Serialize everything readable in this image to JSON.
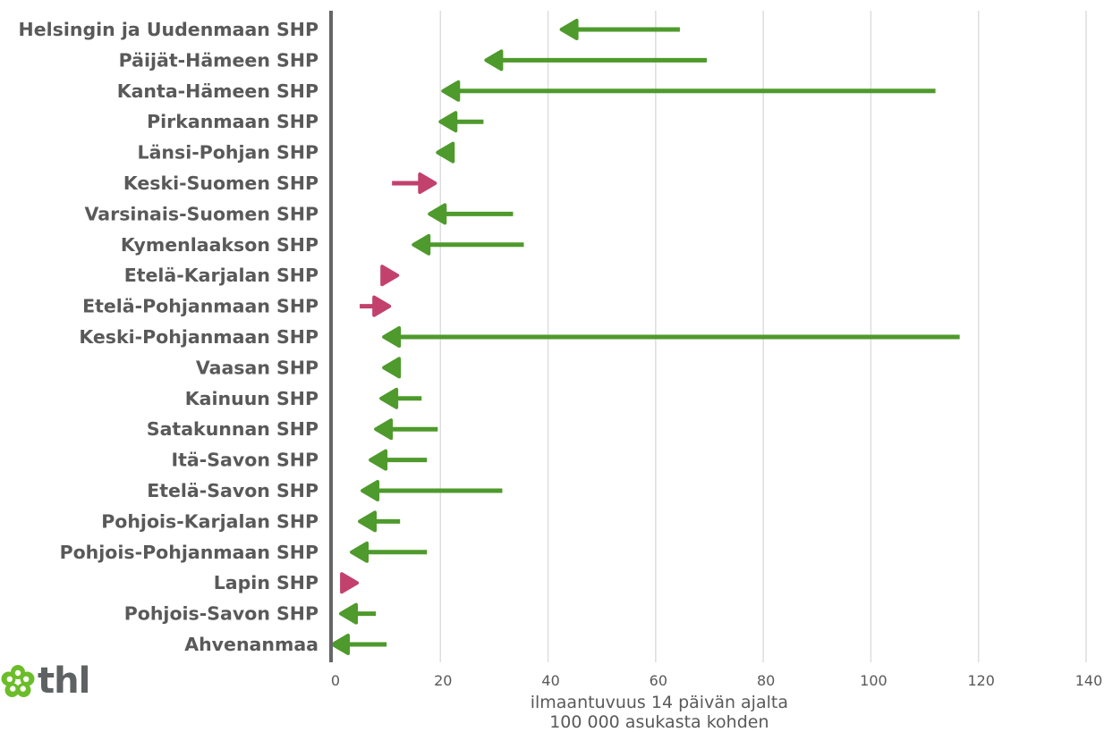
{
  "chart_data": {
    "type": "arrow",
    "xlabel": "ilmaantuvuus 14 päivän ajalta\n100 000 asukasta kohden",
    "xlim": [
      0,
      140
    ],
    "xticks": [
      0,
      20,
      40,
      60,
      80,
      100,
      120,
      140
    ],
    "grid": true,
    "colors": {
      "decrease": "#4e9a2c",
      "increase": "#c2416d",
      "axis": "#666666",
      "text": "#595959"
    },
    "rows": [
      {
        "label": "Helsingin ja Uudenmaan SHP",
        "from": 64.5,
        "to": 42.5
      },
      {
        "label": "Päijät-Hämeen SHP",
        "from": 69.5,
        "to": 28.5
      },
      {
        "label": "Kanta-Hämeen SHP",
        "from": 112.0,
        "to": 20.5
      },
      {
        "label": "Pirkanmaan SHP",
        "from": 28.0,
        "to": 20.0
      },
      {
        "label": "Länsi-Pohjan SHP",
        "from": 22.0,
        "to": 19.5
      },
      {
        "label": "Keski-Suomen SHP",
        "from": 11.0,
        "to": 19.0
      },
      {
        "label": "Varsinais-Suomen SHP",
        "from": 33.5,
        "to": 18.0
      },
      {
        "label": "Kymenlaakson SHP",
        "from": 35.5,
        "to": 15.0
      },
      {
        "label": "Etelä-Karjalan SHP",
        "from": 9.5,
        "to": 12.0
      },
      {
        "label": "Etelä-Pohjanmaan SHP",
        "from": 5.0,
        "to": 10.5
      },
      {
        "label": "Keski-Pohjanmaan SHP",
        "from": 116.5,
        "to": 9.5
      },
      {
        "label": "Vaasan SHP",
        "from": 12.0,
        "to": 9.5
      },
      {
        "label": "Kainuun SHP",
        "from": 16.5,
        "to": 9.0
      },
      {
        "label": "Satakunnan SHP",
        "from": 19.5,
        "to": 8.0
      },
      {
        "label": "Itä-Savon SHP",
        "from": 17.5,
        "to": 7.0
      },
      {
        "label": "Etelä-Savon SHP",
        "from": 31.5,
        "to": 5.5
      },
      {
        "label": "Pohjois-Karjalan SHP",
        "from": 12.5,
        "to": 5.0
      },
      {
        "label": "Pohjois-Pohjanmaan SHP",
        "from": 17.5,
        "to": 3.5
      },
      {
        "label": "Lapin SHP",
        "from": 1.5,
        "to": 4.5
      },
      {
        "label": "Pohjois-Savon SHP",
        "from": 8.0,
        "to": 1.5
      },
      {
        "label": "Ahvenanmaa",
        "from": 10.0,
        "to": 0.0
      }
    ]
  },
  "logo": {
    "text": "thl",
    "icon": "flower-icon"
  }
}
